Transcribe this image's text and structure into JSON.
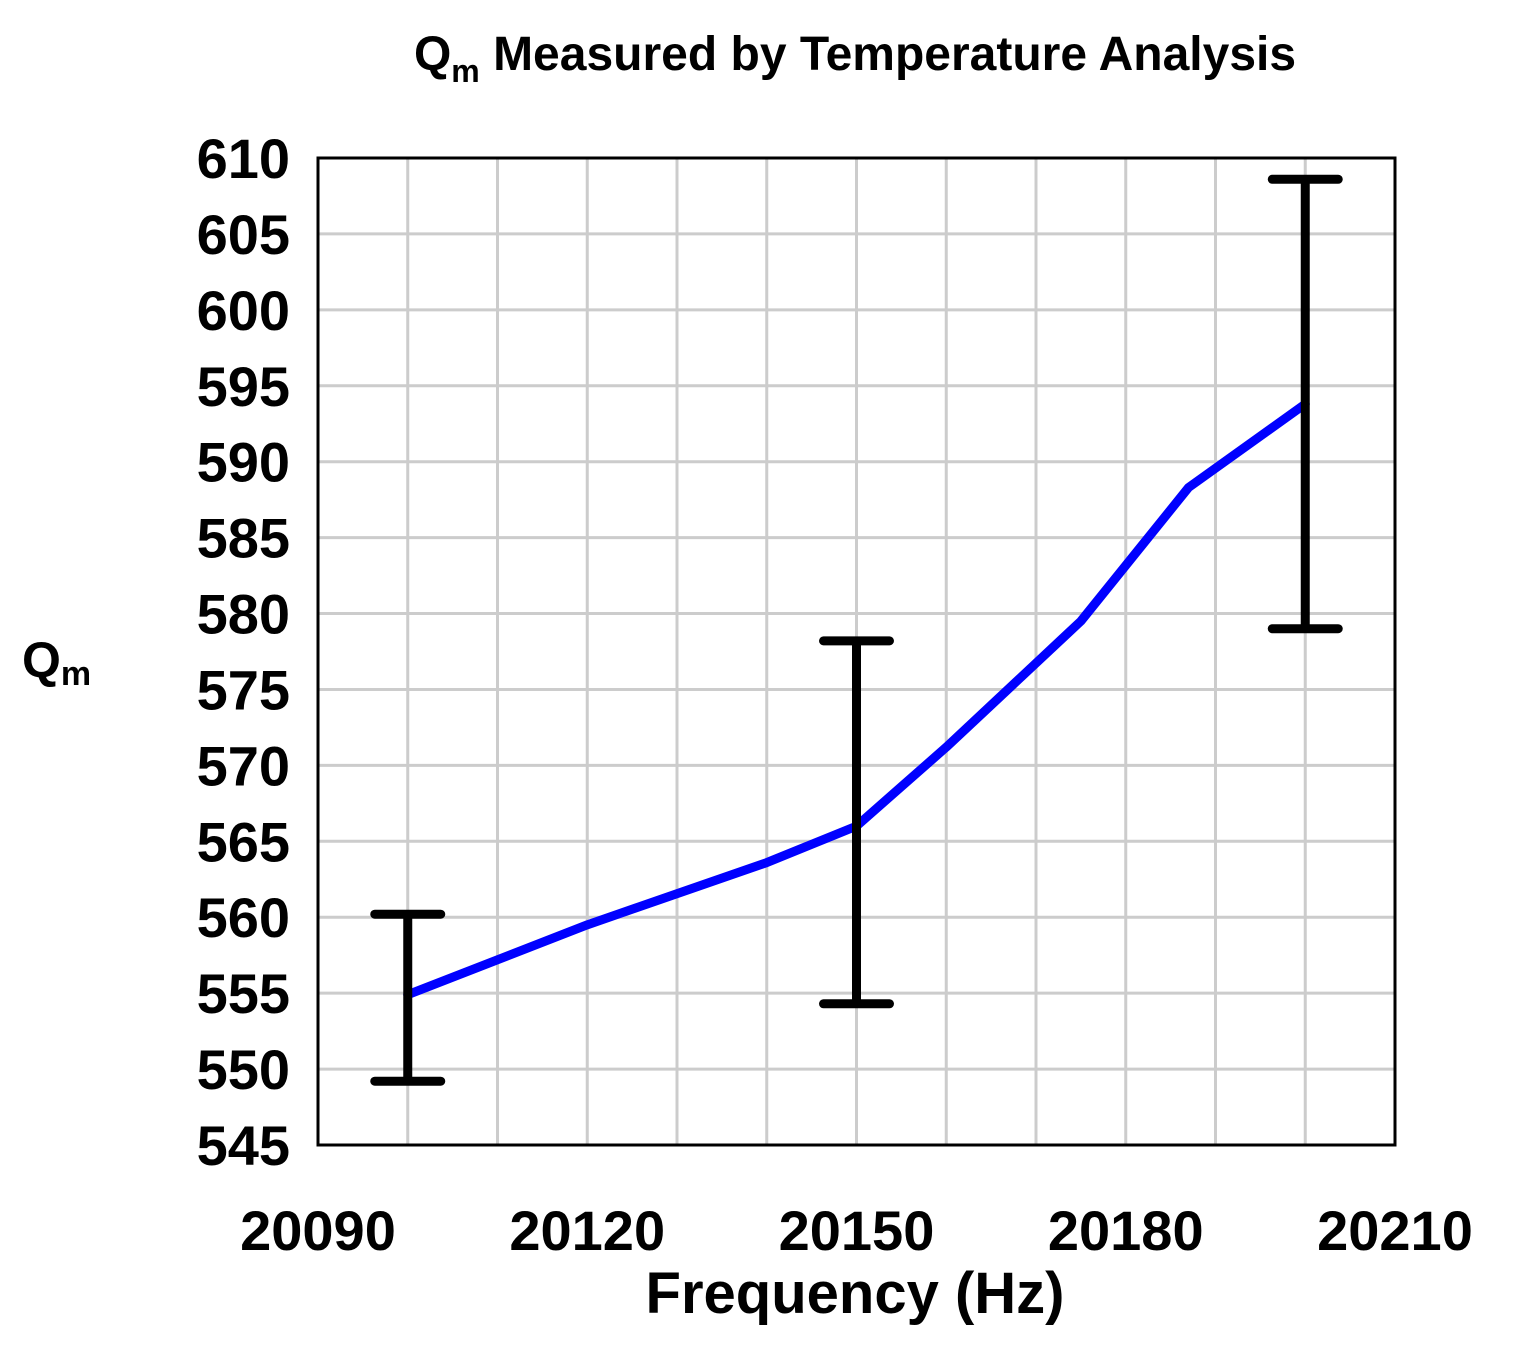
{
  "chart_data": {
    "type": "line",
    "title": {
      "main": "Q",
      "subscript": "m",
      "rest": " Measured by Temperature Analysis"
    },
    "xlabel": "Frequency (Hz)",
    "ylabel": {
      "main": "Q",
      "subscript": "m"
    },
    "xlim": [
      20090,
      20210
    ],
    "ylim": [
      545,
      610
    ],
    "xticks": [
      20090,
      20120,
      20150,
      20180,
      20210
    ],
    "yticks": [
      610,
      605,
      600,
      595,
      590,
      585,
      580,
      575,
      570,
      565,
      560,
      555,
      550,
      545
    ],
    "grid": true,
    "x_minor_gridlines": [
      20100,
      20110,
      20130,
      20140,
      20160,
      20170,
      20190,
      20200
    ],
    "series": [
      {
        "color": "#0000ff",
        "points": [
          {
            "x": 20100,
            "y": 554.9
          },
          {
            "x": 20120,
            "y": 559.5
          },
          {
            "x": 20140,
            "y": 563.6
          },
          {
            "x": 20150,
            "y": 566.0
          },
          {
            "x": 20160,
            "y": 571.2
          },
          {
            "x": 20175,
            "y": 579.5
          },
          {
            "x": 20187,
            "y": 588.3
          },
          {
            "x": 20200,
            "y": 593.8
          }
        ]
      }
    ],
    "error_bars": {
      "color": "#000000",
      "items": [
        {
          "x": 20100,
          "low": 549.2,
          "high": 560.2
        },
        {
          "x": 20150,
          "low": 554.3,
          "high": 578.2
        },
        {
          "x": 20200,
          "low": 579.0,
          "high": 608.6
        }
      ]
    }
  }
}
